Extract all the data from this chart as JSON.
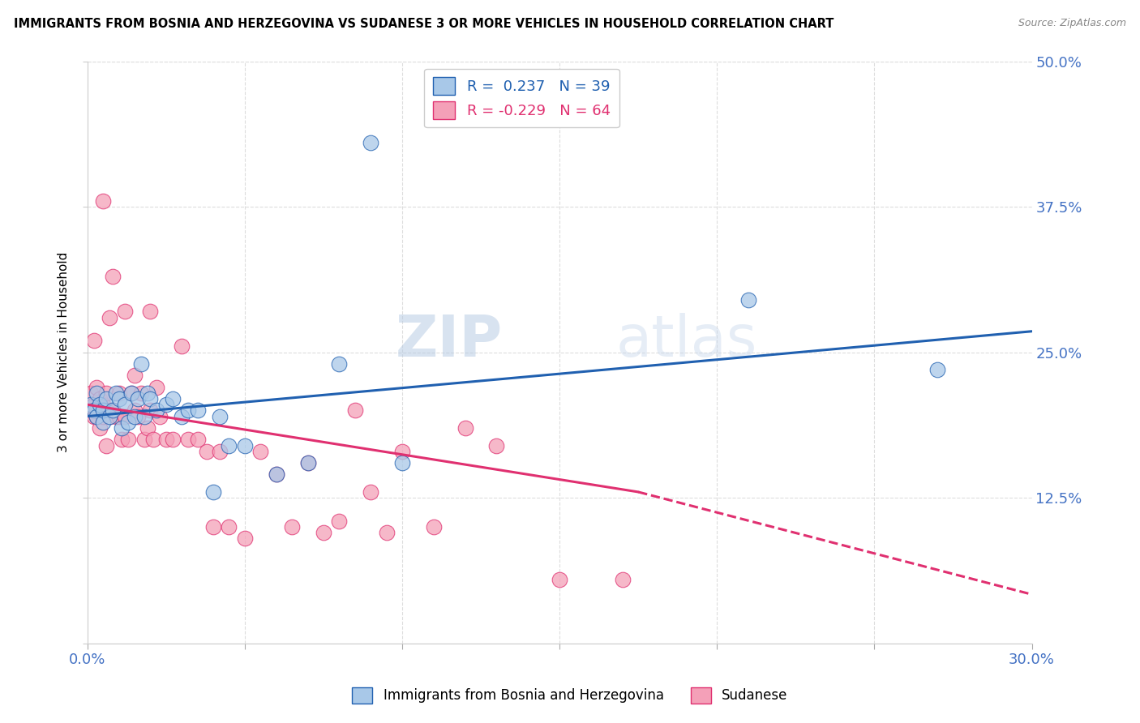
{
  "title": "IMMIGRANTS FROM BOSNIA AND HERZEGOVINA VS SUDANESE 3 OR MORE VEHICLES IN HOUSEHOLD CORRELATION CHART",
  "source": "Source: ZipAtlas.com",
  "ylabel": "3 or more Vehicles in Household",
  "xmin": 0.0,
  "xmax": 0.3,
  "ymin": 0.0,
  "ymax": 0.5,
  "legend1_label": "Immigrants from Bosnia and Herzegovina",
  "legend2_label": "Sudanese",
  "R1": 0.237,
  "N1": 39,
  "R2": -0.229,
  "N2": 64,
  "color_blue": "#a8c8e8",
  "color_pink": "#f4a0b8",
  "trendline_blue": "#2060b0",
  "trendline_pink": "#e03070",
  "watermark_zip": "ZIP",
  "watermark_atlas": "atlas",
  "blue_line_y0": 0.195,
  "blue_line_y1": 0.268,
  "pink_line_y0": 0.205,
  "pink_line_solid_x1": 0.175,
  "pink_line_y1": 0.13,
  "pink_line_x2": 0.3,
  "pink_line_y2": 0.042,
  "bosnia_x": [
    0.001,
    0.002,
    0.003,
    0.003,
    0.004,
    0.005,
    0.005,
    0.006,
    0.007,
    0.008,
    0.009,
    0.01,
    0.011,
    0.012,
    0.013,
    0.014,
    0.015,
    0.016,
    0.017,
    0.018,
    0.019,
    0.02,
    0.022,
    0.025,
    0.027,
    0.03,
    0.032,
    0.035,
    0.04,
    0.042,
    0.045,
    0.05,
    0.06,
    0.07,
    0.08,
    0.09,
    0.1,
    0.21,
    0.27
  ],
  "bosnia_y": [
    0.205,
    0.2,
    0.195,
    0.215,
    0.205,
    0.19,
    0.2,
    0.21,
    0.195,
    0.2,
    0.215,
    0.21,
    0.185,
    0.205,
    0.19,
    0.215,
    0.195,
    0.21,
    0.24,
    0.195,
    0.215,
    0.21,
    0.2,
    0.205,
    0.21,
    0.195,
    0.2,
    0.2,
    0.13,
    0.195,
    0.17,
    0.17,
    0.145,
    0.155,
    0.24,
    0.43,
    0.155,
    0.295,
    0.235
  ],
  "sudanese_x": [
    0.001,
    0.001,
    0.002,
    0.002,
    0.002,
    0.003,
    0.003,
    0.003,
    0.004,
    0.004,
    0.005,
    0.005,
    0.005,
    0.006,
    0.006,
    0.006,
    0.007,
    0.007,
    0.008,
    0.008,
    0.009,
    0.01,
    0.01,
    0.011,
    0.012,
    0.012,
    0.013,
    0.014,
    0.015,
    0.015,
    0.016,
    0.017,
    0.018,
    0.019,
    0.02,
    0.02,
    0.021,
    0.022,
    0.023,
    0.025,
    0.027,
    0.03,
    0.032,
    0.035,
    0.038,
    0.04,
    0.042,
    0.045,
    0.05,
    0.055,
    0.06,
    0.065,
    0.07,
    0.075,
    0.08,
    0.085,
    0.09,
    0.095,
    0.1,
    0.11,
    0.12,
    0.13,
    0.15,
    0.17
  ],
  "sudanese_y": [
    0.2,
    0.215,
    0.195,
    0.205,
    0.26,
    0.2,
    0.195,
    0.22,
    0.185,
    0.21,
    0.195,
    0.205,
    0.38,
    0.17,
    0.2,
    0.215,
    0.195,
    0.28,
    0.2,
    0.315,
    0.195,
    0.215,
    0.195,
    0.175,
    0.195,
    0.285,
    0.175,
    0.215,
    0.2,
    0.23,
    0.195,
    0.215,
    0.175,
    0.185,
    0.2,
    0.285,
    0.175,
    0.22,
    0.195,
    0.175,
    0.175,
    0.255,
    0.175,
    0.175,
    0.165,
    0.1,
    0.165,
    0.1,
    0.09,
    0.165,
    0.145,
    0.1,
    0.155,
    0.095,
    0.105,
    0.2,
    0.13,
    0.095,
    0.165,
    0.1,
    0.185,
    0.17,
    0.055,
    0.055
  ]
}
